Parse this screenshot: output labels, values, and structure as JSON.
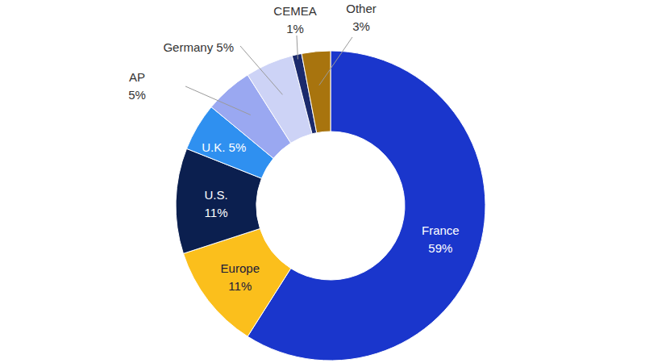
{
  "chart_data": {
    "type": "pie",
    "categories": [
      "France",
      "Europe",
      "U.S.",
      "U.K.",
      "AP",
      "Germany",
      "CEMEA",
      "Other"
    ],
    "values": [
      59,
      11,
      11,
      5,
      5,
      5,
      1,
      3
    ],
    "value_labels": [
      "59%",
      "11%",
      "11%",
      "5%",
      "5%",
      "5%",
      "1%",
      "3%"
    ],
    "colors": [
      "#1a36cc",
      "#fbbf1c",
      "#0b1f4f",
      "#2f90f0",
      "#9aa8f1",
      "#cdd3f6",
      "#1b2a6c",
      "#a8740e"
    ],
    "data_labels": true
  }
}
